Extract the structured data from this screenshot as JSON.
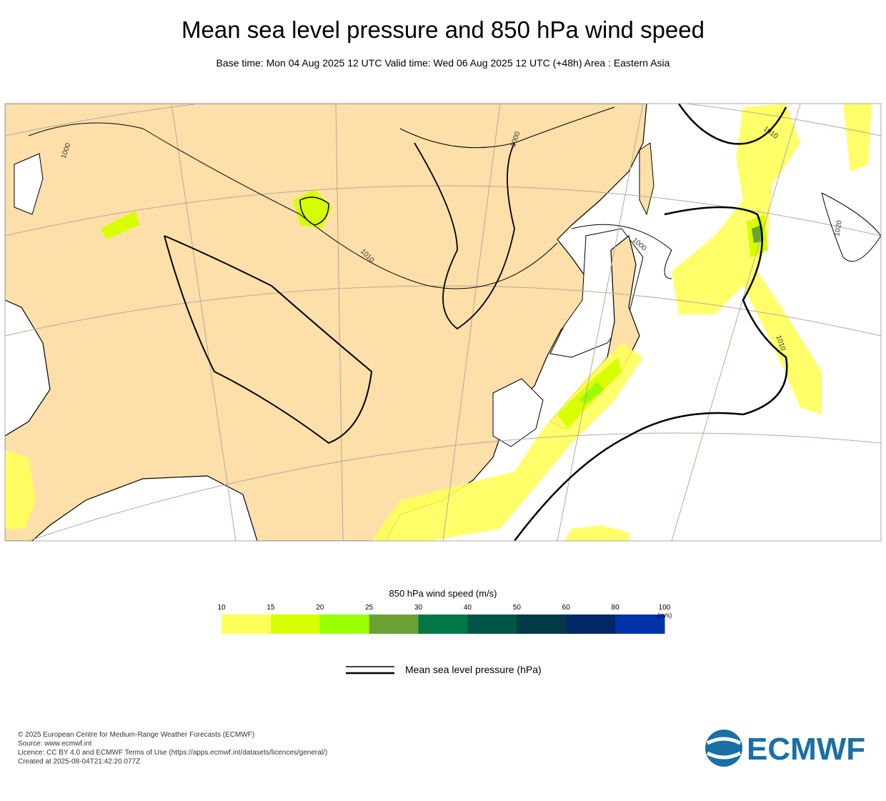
{
  "title": "Mean sea level pressure and 850 hPa wind speed",
  "subtitle": "Base time: Mon 04 Aug 2025 12 UTC Valid time: Wed 06 Aug 2025 12 UTC (+48h) Area : Eastern Asia",
  "map": {
    "contour_labels": [
      "1000",
      "1010",
      "1000",
      "1010",
      "1000",
      "1020",
      "1010"
    ]
  },
  "colorbar": {
    "title": "850 hPa wind speed (m/s)",
    "unit": "(m/s)",
    "ticks": [
      10,
      15,
      20,
      25,
      30,
      40,
      50,
      60,
      80,
      100
    ],
    "colors": [
      "#ffff5a",
      "#d7ff00",
      "#99ff00",
      "#6aa333",
      "#007744",
      "#005544",
      "#003a44",
      "#002866",
      "#0033aa"
    ]
  },
  "legend": {
    "label": "Mean sea level pressure (hPa)"
  },
  "footer": [
    "© 2025 European Centre for Medium-Range Weather Forecasts (ECMWF)",
    "Source: www.ecmwf.int",
    "Licence: CC BY 4.0 and ECMWF Terms of Use (https://apps.ecmwf.int/datasets/licences/general/)",
    "Created at 2025-08-04T21:42:20.077Z"
  ],
  "logo": "ECMWF"
}
